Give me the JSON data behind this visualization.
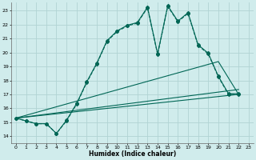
{
  "xlabel": "Humidex (Indice chaleur)",
  "bg_color": "#d0ecec",
  "grid_color": "#b0d4d4",
  "line_color": "#006655",
  "xlim": [
    -0.5,
    23.5
  ],
  "ylim": [
    13.5,
    23.6
  ],
  "yticks": [
    14,
    15,
    16,
    17,
    18,
    19,
    20,
    21,
    22,
    23
  ],
  "xticks": [
    0,
    1,
    2,
    3,
    4,
    5,
    6,
    7,
    8,
    9,
    10,
    11,
    12,
    13,
    14,
    15,
    16,
    17,
    18,
    19,
    20,
    21,
    22,
    23
  ],
  "series1_x": [
    0,
    1,
    2,
    3,
    4,
    5,
    6,
    7,
    8,
    9,
    10,
    11,
    12,
    13,
    14,
    15,
    16,
    17,
    18,
    19,
    20,
    21,
    22
  ],
  "series1_y": [
    15.3,
    15.1,
    14.9,
    14.9,
    14.2,
    15.1,
    16.3,
    17.85,
    19.2,
    20.8,
    21.5,
    21.9,
    22.1,
    23.2,
    19.85,
    23.3,
    22.2,
    22.8,
    20.5,
    19.9,
    18.25,
    17.0,
    17.0
  ],
  "series2_x": [
    0,
    1,
    2,
    3,
    4,
    5,
    6,
    7,
    8,
    9,
    10,
    11,
    12,
    13,
    14,
    15,
    16,
    17,
    18,
    19,
    20,
    21,
    22
  ],
  "series2_y": [
    15.3,
    15.1,
    14.9,
    14.9,
    14.2,
    15.15,
    16.35,
    17.9,
    19.25,
    20.85,
    21.55,
    21.95,
    22.15,
    23.25,
    19.9,
    23.35,
    22.25,
    22.85,
    20.55,
    19.95,
    18.3,
    17.05,
    17.05
  ],
  "line3_x": [
    0,
    22
  ],
  "line3_y": [
    15.3,
    17.0
  ],
  "line4_x": [
    0,
    22
  ],
  "line4_y": [
    15.3,
    17.35
  ],
  "line5_x": [
    0,
    20,
    22
  ],
  "line5_y": [
    15.3,
    19.35,
    17.0
  ]
}
